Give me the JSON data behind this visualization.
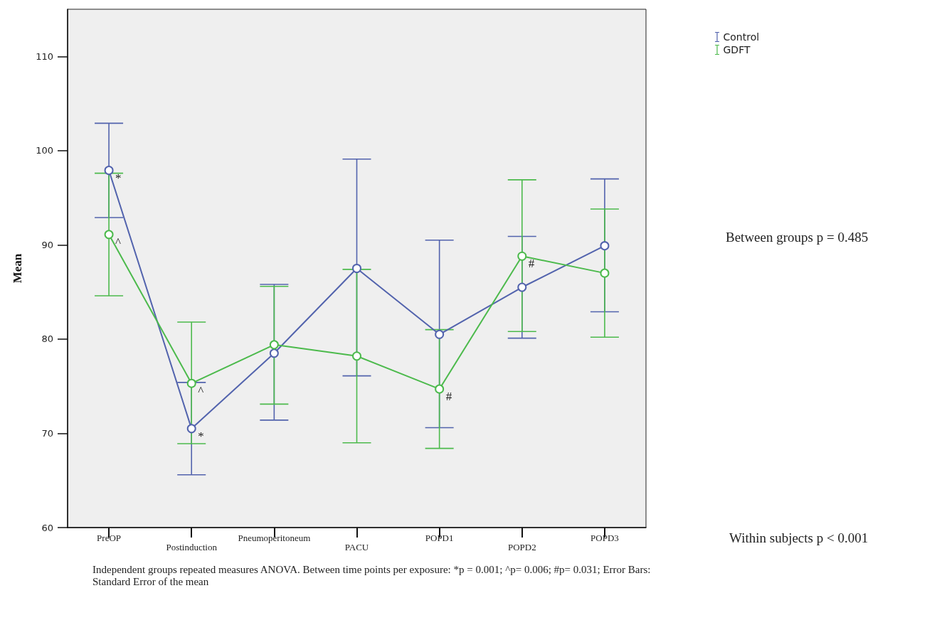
{
  "chart_data": {
    "type": "line",
    "ylabel": "Mean",
    "categories": [
      "PreOP",
      "Postinduction",
      "Pneumoperitoneum",
      "PACU",
      "POPD1",
      "POPD2",
      "POPD3"
    ],
    "series": [
      {
        "name": "Control",
        "color": "#5263ad",
        "values": [
          97.9,
          70.5,
          78.5,
          87.5,
          80.5,
          85.5,
          89.9
        ],
        "errors": [
          [
            92.9,
            102.9
          ],
          [
            65.6,
            75.4
          ],
          [
            71.4,
            85.8
          ],
          [
            76.1,
            99.1
          ],
          [
            70.6,
            90.5
          ],
          [
            80.1,
            90.9
          ],
          [
            82.9,
            97.0
          ]
        ]
      },
      {
        "name": "GDFT",
        "color": "#4cba4c",
        "values": [
          91.1,
          75.3,
          79.4,
          78.2,
          74.7,
          88.8,
          87.0
        ],
        "errors": [
          [
            84.6,
            97.6
          ],
          [
            68.9,
            81.8
          ],
          [
            73.1,
            85.6
          ],
          [
            69.0,
            87.4
          ],
          [
            68.4,
            81.0
          ],
          [
            80.8,
            96.9
          ],
          [
            80.2,
            93.8
          ]
        ]
      }
    ],
    "ylim": [
      60,
      115
    ],
    "yticks": [
      60,
      70,
      80,
      90,
      100,
      110
    ],
    "grid": false,
    "legend": "top right",
    "marker": "circle",
    "line_style": "solid",
    "annotations": [
      {
        "text": "*",
        "x": "PreOP",
        "y": 97.9
      },
      {
        "text": "^",
        "x": "PreOP",
        "y": 91.1
      },
      {
        "text": "^",
        "x": "Postinduction",
        "y": 75.3
      },
      {
        "text": "*",
        "x": "Postinduction",
        "y": 70.5
      },
      {
        "text": "#",
        "x": "POPD1",
        "y": 74.7
      },
      {
        "text": "#",
        "x": "POPD2",
        "y": 88.8
      },
      "Between groups p = 0.485",
      "Within subjects p < 0.001",
      "Independent groups repeated measures ANOVA. Between time points per exposure: *p = 0.001; ^p= 0.006; #p= 0.031; Error Bars: Standard Error of the mean"
    ]
  }
}
